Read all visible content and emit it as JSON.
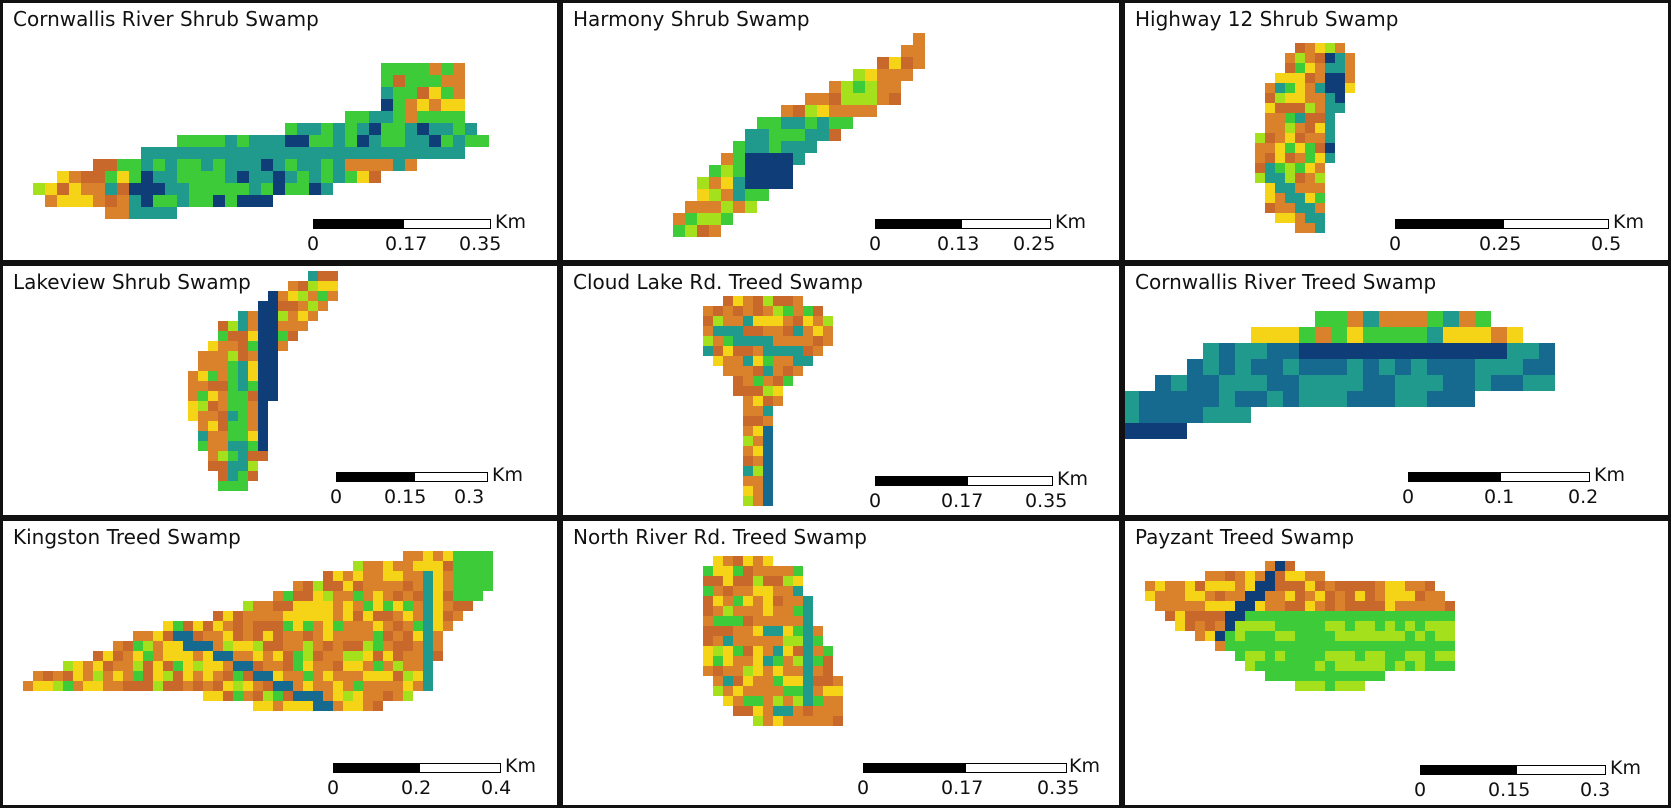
{
  "colors": {
    "orange": "#d9822b",
    "brown": "#c8682a",
    "yellow": "#f5d316",
    "lime": "#a5e01c",
    "green": "#3ecb3a",
    "teal": "#1f9a8c",
    "blue": "#176a8f",
    "navy": "#0e3d78"
  },
  "unit": "Km",
  "panels": [
    {
      "title": "Cornwallis River Shrub Swamp",
      "ticks": [
        "0",
        "0.17",
        "0.35"
      ]
    },
    {
      "title": "Harmony Shrub Swamp",
      "ticks": [
        "0",
        "0.13",
        "0.25"
      ]
    },
    {
      "title": "Highway 12 Shrub Swamp",
      "ticks": [
        "0",
        "0.25",
        "0.5"
      ]
    },
    {
      "title": "Lakeview Shrub Swamp",
      "ticks": [
        "0",
        "0.15",
        "0.3"
      ]
    },
    {
      "title": "Cloud Lake Rd. Treed Swamp",
      "ticks": [
        "0",
        "0.17",
        "0.35"
      ]
    },
    {
      "title": "Cornwallis River Treed Swamp",
      "ticks": [
        "0",
        "0.1",
        "0.2"
      ]
    },
    {
      "title": "Kingston Treed Swamp",
      "ticks": [
        "0",
        "0.2",
        "0.4"
      ]
    },
    {
      "title": "North River Rd. Treed Swamp",
      "ticks": [
        "0",
        "0.17",
        "0.35"
      ]
    },
    {
      "title": "Payzant Treed Swamp",
      "ticks": [
        "0",
        "0.15",
        "0.3"
      ]
    }
  ]
}
